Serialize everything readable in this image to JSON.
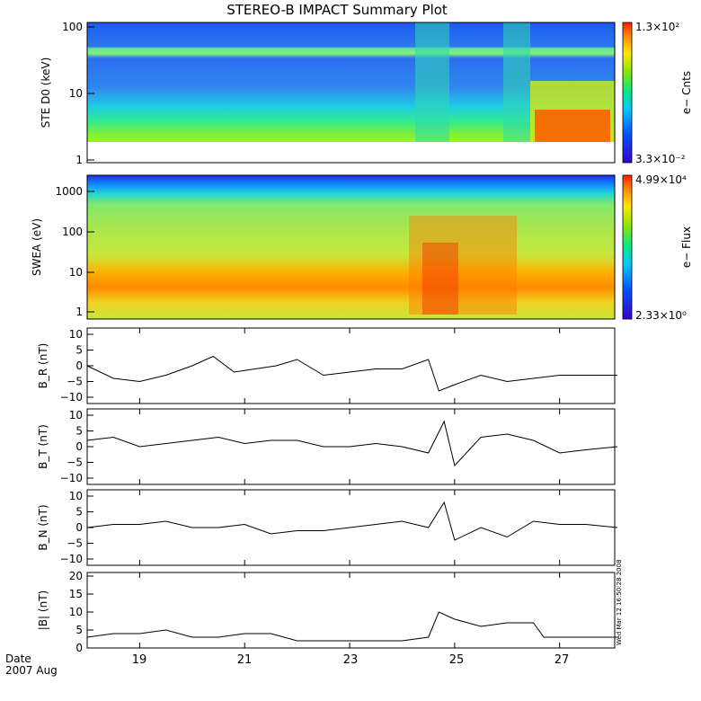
{
  "title": "STEREO-B IMPACT Summary Plot",
  "timestamp": "Wed Mar 12 16:50:28 2008",
  "date_label": "Date",
  "date_sub": "2007 Aug",
  "x_ticks": [
    "19",
    "21",
    "23",
    "25",
    "27"
  ],
  "colors": {
    "line": "#000000"
  },
  "chart_data": [
    {
      "type": "heatmap",
      "ylabel": "STE D0 (keV)",
      "yscale": "log",
      "ylim": [
        1,
        100
      ],
      "y_ticks": [
        "1",
        "10",
        "100"
      ],
      "colorbar_label": "e− Cnts",
      "colorbar_max": "1.3×10²",
      "colorbar_min": "3.3×10⁻²"
    },
    {
      "type": "heatmap",
      "ylabel": "SWEA (eV)",
      "yscale": "log",
      "ylim": [
        1,
        2000
      ],
      "y_ticks": [
        "1",
        "10",
        "100",
        "1000"
      ],
      "colorbar_label": "e− Flux",
      "colorbar_max": "4.99×10⁴",
      "colorbar_min": "2.33×10⁰"
    },
    {
      "type": "line",
      "ylabel": "B_R (nT)",
      "ylim": [
        -12,
        12
      ],
      "y_ticks": [
        "10",
        "5",
        "0",
        "−5",
        "−10"
      ],
      "x": [
        18.0,
        18.5,
        19.0,
        19.5,
        20.0,
        20.4,
        20.8,
        21.2,
        21.6,
        22.0,
        22.5,
        23.0,
        23.5,
        24.0,
        24.5,
        24.7,
        25.0,
        25.5,
        26.0,
        26.5,
        27.0,
        27.5,
        28.1
      ],
      "values": [
        0,
        -4,
        -5,
        -3,
        0,
        3,
        -2,
        -1,
        0,
        2,
        -3,
        -2,
        -1,
        -1,
        2,
        -8,
        -6,
        -3,
        -5,
        -4,
        -3,
        -3,
        -3
      ]
    },
    {
      "type": "line",
      "ylabel": "B_T (nT)",
      "ylim": [
        -12,
        12
      ],
      "y_ticks": [
        "10",
        "5",
        "0",
        "−5",
        "−10"
      ],
      "x": [
        18.0,
        18.5,
        19.0,
        19.5,
        20.0,
        20.5,
        21.0,
        21.5,
        22.0,
        22.5,
        23.0,
        23.5,
        24.0,
        24.5,
        24.8,
        25.0,
        25.5,
        26.0,
        26.5,
        27.0,
        27.5,
        28.1
      ],
      "values": [
        2,
        3,
        0,
        1,
        2,
        3,
        1,
        2,
        2,
        0,
        0,
        1,
        0,
        -2,
        8,
        -6,
        3,
        4,
        2,
        -2,
        -1,
        0
      ]
    },
    {
      "type": "line",
      "ylabel": "B_N (nT)",
      "ylim": [
        -12,
        12
      ],
      "y_ticks": [
        "10",
        "5",
        "0",
        "−5",
        "−10"
      ],
      "x": [
        18.0,
        18.5,
        19.0,
        19.5,
        20.0,
        20.5,
        21.0,
        21.5,
        22.0,
        22.5,
        23.0,
        23.5,
        24.0,
        24.5,
        24.8,
        25.0,
        25.5,
        26.0,
        26.5,
        27.0,
        27.5,
        28.1
      ],
      "values": [
        0,
        1,
        1,
        2,
        0,
        0,
        1,
        -2,
        -1,
        -1,
        0,
        1,
        2,
        0,
        8,
        -4,
        0,
        -3,
        2,
        1,
        1,
        0
      ]
    },
    {
      "type": "line",
      "ylabel": "|B| (nT)",
      "ylim": [
        0,
        21
      ],
      "y_ticks": [
        "20",
        "15",
        "10",
        "5",
        "0"
      ],
      "x": [
        18.0,
        18.5,
        19.0,
        19.5,
        20.0,
        20.5,
        21.0,
        21.5,
        22.0,
        22.5,
        23.0,
        23.5,
        24.0,
        24.5,
        24.7,
        25.0,
        25.5,
        26.0,
        26.5,
        26.7,
        27.0,
        27.5,
        28.1
      ],
      "values": [
        3,
        4,
        4,
        5,
        3,
        3,
        4,
        4,
        2,
        2,
        2,
        2,
        2,
        3,
        10,
        8,
        6,
        7,
        7,
        3,
        3,
        3,
        3
      ]
    }
  ]
}
